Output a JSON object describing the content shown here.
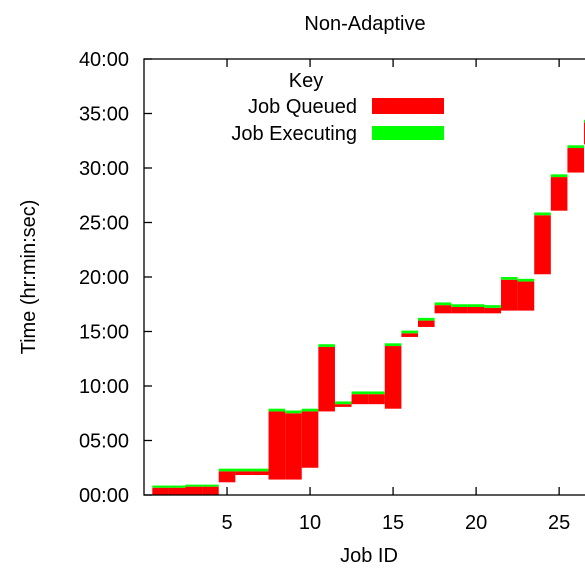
{
  "chart_data": {
    "type": "bar",
    "title": "Non-Adaptive",
    "xlabel": "Job ID",
    "ylabel": "Time (hr:min:sec)",
    "xlim": [
      0,
      27.1
    ],
    "ylim": [
      0,
      2400
    ],
    "x_ticks": [
      5,
      10,
      15,
      20,
      25
    ],
    "x_tick_labels": [
      "5",
      "10",
      "15",
      "20",
      "25"
    ],
    "y_ticks": [
      0,
      300,
      600,
      900,
      1200,
      1500,
      1800,
      2100,
      2400
    ],
    "y_tick_labels": [
      "00:00",
      "05:00",
      "10:00",
      "15:00",
      "20:00",
      "25:00",
      "30:00",
      "35:00",
      "40:00"
    ],
    "legend": {
      "title": "Key",
      "placement": "top-left",
      "items": [
        {
          "label": "Job Queued",
          "color": "#ff0000"
        },
        {
          "label": "Job Executing",
          "color": "#00ff00"
        }
      ]
    },
    "series": [
      {
        "name": "Job Queued",
        "color": "#ff0000"
      },
      {
        "name": "Job Executing",
        "color": "#00ff00"
      }
    ],
    "units": {
      "y": "seconds"
    },
    "jobs": [
      {
        "id": 1,
        "submit": 0,
        "start": 40,
        "end": 52
      },
      {
        "id": 2,
        "submit": 0,
        "start": 40,
        "end": 52
      },
      {
        "id": 3,
        "submit": 0,
        "start": 46,
        "end": 57
      },
      {
        "id": 4,
        "submit": 0,
        "start": 46,
        "end": 57
      },
      {
        "id": 5,
        "submit": 70,
        "start": 130,
        "end": 145
      },
      {
        "id": 6,
        "submit": 110,
        "start": 130,
        "end": 145
      },
      {
        "id": 7,
        "submit": 110,
        "start": 130,
        "end": 145
      },
      {
        "id": 8,
        "submit": 85,
        "start": 460,
        "end": 475
      },
      {
        "id": 9,
        "submit": 85,
        "start": 450,
        "end": 465
      },
      {
        "id": 10,
        "submit": 150,
        "start": 460,
        "end": 475
      },
      {
        "id": 11,
        "submit": 460,
        "start": 815,
        "end": 830
      },
      {
        "id": 12,
        "submit": 485,
        "start": 500,
        "end": 515
      },
      {
        "id": 13,
        "submit": 500,
        "start": 555,
        "end": 570
      },
      {
        "id": 14,
        "submit": 500,
        "start": 555,
        "end": 570
      },
      {
        "id": 15,
        "submit": 475,
        "start": 820,
        "end": 835
      },
      {
        "id": 16,
        "submit": 870,
        "start": 890,
        "end": 905
      },
      {
        "id": 17,
        "submit": 925,
        "start": 960,
        "end": 975
      },
      {
        "id": 18,
        "submit": 1000,
        "start": 1045,
        "end": 1060
      },
      {
        "id": 19,
        "submit": 1000,
        "start": 1035,
        "end": 1050
      },
      {
        "id": 20,
        "submit": 1000,
        "start": 1035,
        "end": 1050
      },
      {
        "id": 21,
        "submit": 1000,
        "start": 1030,
        "end": 1045
      },
      {
        "id": 22,
        "submit": 1015,
        "start": 1185,
        "end": 1200
      },
      {
        "id": 23,
        "submit": 1015,
        "start": 1175,
        "end": 1190
      },
      {
        "id": 24,
        "submit": 1215,
        "start": 1540,
        "end": 1555
      },
      {
        "id": 25,
        "submit": 1565,
        "start": 1750,
        "end": 1765
      },
      {
        "id": 26,
        "submit": 1775,
        "start": 1910,
        "end": 1925
      },
      {
        "id": 27,
        "submit": 1930,
        "start": 2050,
        "end": 2065
      }
    ]
  }
}
